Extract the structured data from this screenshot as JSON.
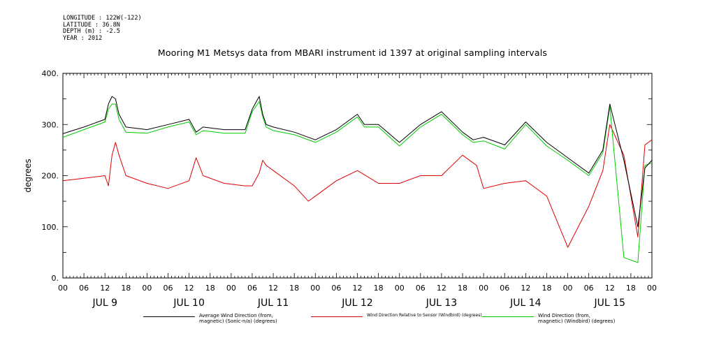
{
  "header": {
    "lines": [
      "LONGITUDE : 122W(-122)",
      "LATITUDE : 36.8N",
      "DEPTH (m) : -2.5",
      "YEAR : 2012"
    ]
  },
  "chart_data": {
    "type": "line",
    "title": "Mooring M1 Metsys data from MBARI instrument id 1397 at original sampling intervals",
    "xlabel": "",
    "ylabel": "degrees",
    "xlim_hours": [
      0,
      168
    ],
    "ylim": [
      0,
      400
    ],
    "y_ticks": [
      "0.",
      "100.",
      "200.",
      "300.",
      "400."
    ],
    "x_hour_labels": [
      "00",
      "06",
      "12",
      "18",
      "00",
      "06",
      "12",
      "18",
      "00",
      "06",
      "12",
      "18",
      "00",
      "06",
      "12",
      "18",
      "00",
      "06",
      "12",
      "18",
      "00",
      "06",
      "12",
      "18",
      "00",
      "06",
      "12",
      "18",
      "00"
    ],
    "day_labels": [
      "JUL  9",
      "JUL 10",
      "JUL 11",
      "JUL 12",
      "JUL 13",
      "JUL 14",
      "JUL 15"
    ],
    "grid": false,
    "legend_position": "bottom",
    "series": [
      {
        "name": "Average Wind Direction (from, magnetic) (Sonic-n/a) (degrees)",
        "name_lines": [
          "Average Wind Direction (from,",
          "magnetic) (Sonic-n/a) (degrees)"
        ],
        "color": "#000000",
        "x": [
          0,
          6,
          12,
          13,
          14,
          15,
          16,
          18,
          24,
          30,
          36,
          38,
          40,
          46,
          52,
          54,
          56,
          57,
          58,
          60,
          66,
          72,
          78,
          84,
          86,
          90,
          96,
          102,
          108,
          114,
          117,
          120,
          126,
          132,
          138,
          144,
          150,
          154,
          156,
          160,
          164,
          166,
          168
        ],
        "y": [
          282,
          295,
          310,
          340,
          355,
          350,
          320,
          295,
          290,
          300,
          310,
          285,
          295,
          290,
          290,
          330,
          355,
          320,
          300,
          295,
          285,
          270,
          290,
          320,
          300,
          300,
          265,
          300,
          325,
          285,
          270,
          275,
          260,
          305,
          265,
          235,
          205,
          250,
          340,
          230,
          100,
          215,
          230
        ]
      },
      {
        "name": "Wind Direction Relative to Sensor (Windbird) (degrees)",
        "name_lines": [
          "Wind Direction Relative to Sensor (Windbird) (degrees)"
        ],
        "color": "#dd0000",
        "x": [
          0,
          6,
          12,
          13,
          14,
          15,
          16,
          18,
          24,
          30,
          36,
          38,
          40,
          46,
          52,
          54,
          56,
          57,
          58,
          60,
          66,
          70,
          72,
          78,
          84,
          90,
          96,
          102,
          108,
          114,
          118,
          120,
          126,
          132,
          138,
          144,
          150,
          154,
          156,
          160,
          164,
          166,
          168
        ],
        "y": [
          190,
          195,
          200,
          180,
          240,
          265,
          240,
          200,
          185,
          175,
          190,
          235,
          200,
          185,
          180,
          180,
          205,
          230,
          220,
          210,
          180,
          150,
          160,
          190,
          210,
          185,
          185,
          200,
          200,
          240,
          220,
          175,
          185,
          190,
          160,
          60,
          140,
          210,
          300,
          240,
          80,
          260,
          270
        ]
      },
      {
        "name": "Wind Direction (from, magnetic) (Windbird) (degrees)",
        "name_lines": [
          "Wind Direction (from,",
          "magnetic) (Windbird) (degrees)"
        ],
        "color": "#00cc00",
        "x": [
          0,
          6,
          12,
          13,
          14,
          15,
          16,
          18,
          24,
          30,
          36,
          38,
          40,
          46,
          52,
          54,
          56,
          57,
          58,
          60,
          66,
          72,
          78,
          84,
          86,
          90,
          96,
          102,
          108,
          114,
          117,
          120,
          126,
          132,
          138,
          144,
          150,
          154,
          156,
          160,
          164,
          166,
          168
        ],
        "y": [
          275,
          290,
          305,
          330,
          340,
          340,
          310,
          285,
          283,
          295,
          305,
          280,
          288,
          283,
          283,
          325,
          345,
          315,
          295,
          288,
          280,
          265,
          285,
          315,
          295,
          295,
          258,
          295,
          320,
          280,
          265,
          268,
          252,
          300,
          258,
          230,
          200,
          245,
          335,
          40,
          30,
          220,
          225
        ]
      }
    ]
  }
}
